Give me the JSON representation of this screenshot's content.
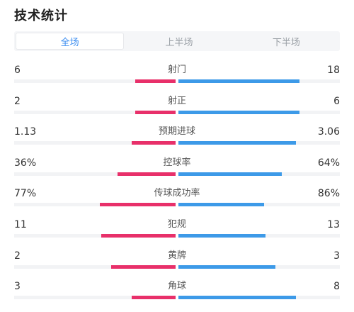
{
  "header": {
    "title": "技术统计"
  },
  "tabs": [
    {
      "label": "全场",
      "active": true
    },
    {
      "label": "上半场",
      "active": false
    },
    {
      "label": "下半场",
      "active": false
    }
  ],
  "colors": {
    "home_bar": "#e8306a",
    "away_bar": "#3d9ae8",
    "active_tab": "#3d8ef0"
  },
  "stats": [
    {
      "label": "射门",
      "home": "6",
      "away": "18",
      "home_share": 0.25,
      "away_share": 0.75
    },
    {
      "label": "射正",
      "home": "2",
      "away": "6",
      "home_share": 0.25,
      "away_share": 0.75
    },
    {
      "label": "预期进球",
      "home": "1.13",
      "away": "3.06",
      "home_share": 0.27,
      "away_share": 0.73
    },
    {
      "label": "控球率",
      "home": "36%",
      "away": "64%",
      "home_share": 0.36,
      "away_share": 0.64
    },
    {
      "label": "传球成功率",
      "home": "77%",
      "away": "86%",
      "home_share": 0.47,
      "away_share": 0.53
    },
    {
      "label": "犯规",
      "home": "11",
      "away": "13",
      "home_share": 0.46,
      "away_share": 0.54
    },
    {
      "label": "黄牌",
      "home": "2",
      "away": "3",
      "home_share": 0.4,
      "away_share": 0.6
    },
    {
      "label": "角球",
      "home": "3",
      "away": "8",
      "home_share": 0.27,
      "away_share": 0.73
    }
  ]
}
